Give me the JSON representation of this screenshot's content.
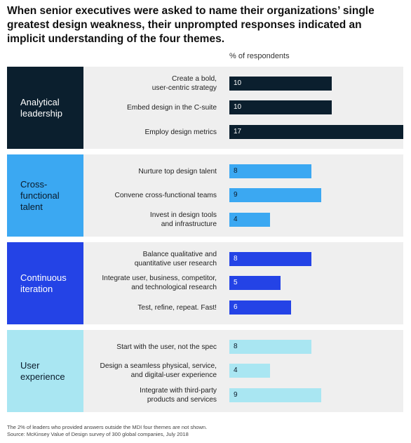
{
  "chart_data": {
    "type": "bar",
    "orientation": "horizontal",
    "title": "When senior executives were asked to name their organizations’ single greatest design weakness, their unprompted responses indicated an implicit understanding of the four themes.",
    "axis_title": "% of respondents",
    "xlim": [
      0,
      17
    ],
    "groups": [
      {
        "name": "Analytical\nleadership",
        "color": "#0b1f2e",
        "text_color": "#ffffff",
        "items": [
          {
            "label": "Create a bold,\nuser-centric strategy",
            "value": 10
          },
          {
            "label": "Embed design in the C-suite",
            "value": 10
          },
          {
            "label": "Employ design metrics",
            "value": 17
          }
        ]
      },
      {
        "name": "Cross-\nfunctional\ntalent",
        "color": "#3ba8f2",
        "text_color": "#0a1a2a",
        "items": [
          {
            "label": "Nurture top design talent",
            "value": 8
          },
          {
            "label": "Convene cross-functional teams",
            "value": 9
          },
          {
            "label": "Invest in design tools\nand infrastructure",
            "value": 4
          }
        ]
      },
      {
        "name": "Continuous\niteration",
        "color": "#2443e6",
        "text_color": "#ffffff",
        "items": [
          {
            "label": "Balance qualitative and\nquantitative user research",
            "value": 8
          },
          {
            "label": "Integrate user, business, competitor,\nand technological research",
            "value": 5
          },
          {
            "label": "Test, refine, repeat. Fast!",
            "value": 6
          }
        ]
      },
      {
        "name": "User\nexperience",
        "color": "#a9e6f2",
        "text_color": "#0a1a2a",
        "items": [
          {
            "label": "Start with the user, not the spec",
            "value": 8
          },
          {
            "label": "Design a seamless physical, service,\nand digital-user experience",
            "value": 4
          },
          {
            "label": "Integrate with third-party\nproducts and services",
            "value": 9
          }
        ]
      }
    ],
    "footnote": "The 2% of leaders who provided answers outside the MDI four themes are not shown.",
    "source": "Source: McKinsey Value of Design survey of 300 global companies, July 2018"
  }
}
